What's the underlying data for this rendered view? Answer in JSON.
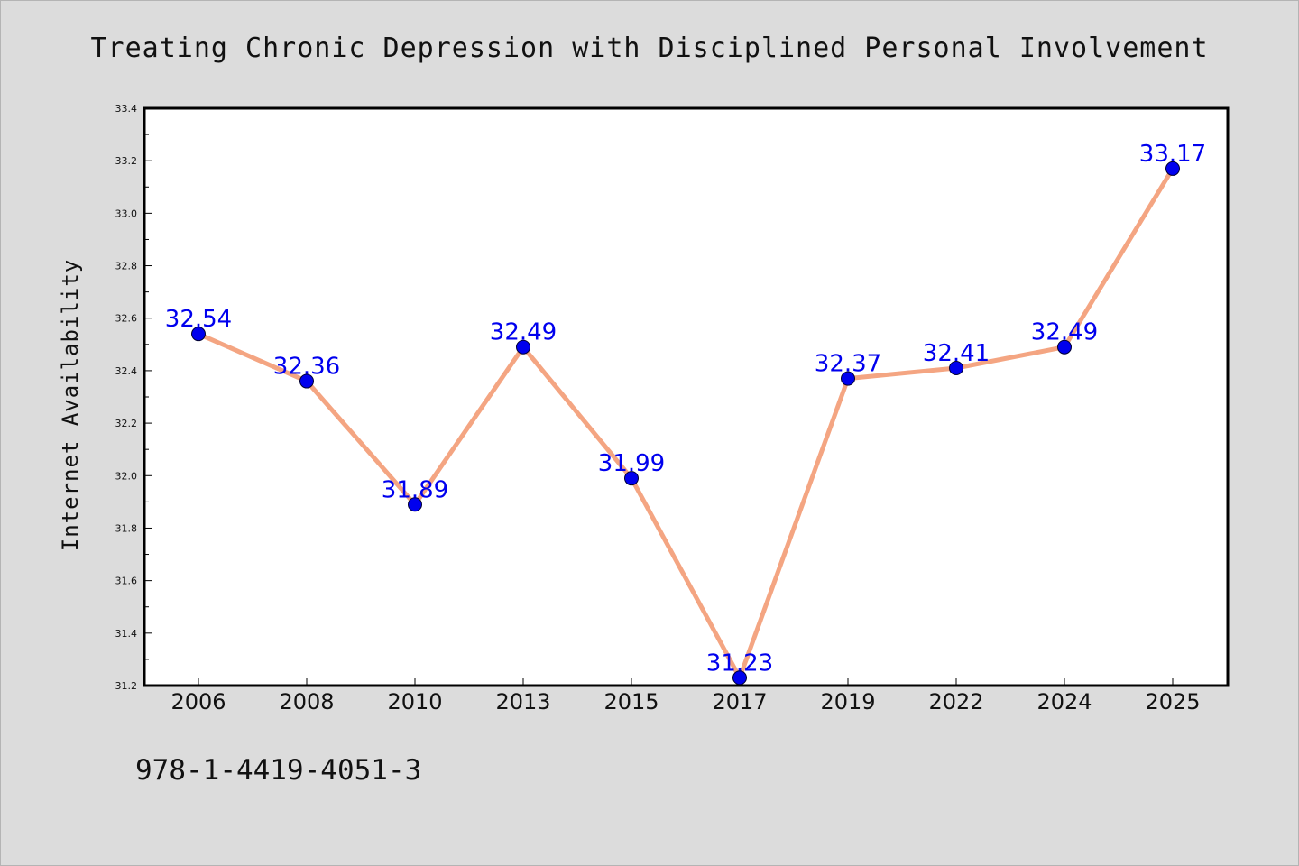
{
  "chart_data": {
    "type": "line",
    "title": "Treating Chronic Depression with Disciplined Personal Involvement",
    "xlabel": "",
    "ylabel": "Internet Availability",
    "categories": [
      "2006",
      "2008",
      "2010",
      "2013",
      "2015",
      "2017",
      "2019",
      "2022",
      "2024",
      "2025"
    ],
    "series": [
      {
        "values": [
          32.54,
          32.36,
          31.89,
          32.49,
          31.99,
          31.23,
          32.37,
          32.41,
          32.49,
          33.17
        ],
        "labels": [
          "32.54",
          "32.36",
          "31.89",
          "32.49",
          "31.99",
          "31.23",
          "32.37",
          "32.41",
          "32.49",
          "33.17"
        ],
        "line_color": "#f4a582",
        "marker_color": "#0000ee"
      }
    ],
    "ylim": [
      31.2,
      33.4
    ],
    "yticks": [
      "31.2",
      "31.4",
      "31.6",
      "31.8",
      "32.0",
      "32.2",
      "32.4",
      "32.6",
      "32.8",
      "33.0",
      "33.2",
      "33.4"
    ],
    "grid": false,
    "legend": "none"
  },
  "footer": {
    "isbn": "978-1-4419-4051-3"
  },
  "colors": {
    "background": "#dcdcdc",
    "plot_background": "#ffffff",
    "axis": "#000000"
  }
}
